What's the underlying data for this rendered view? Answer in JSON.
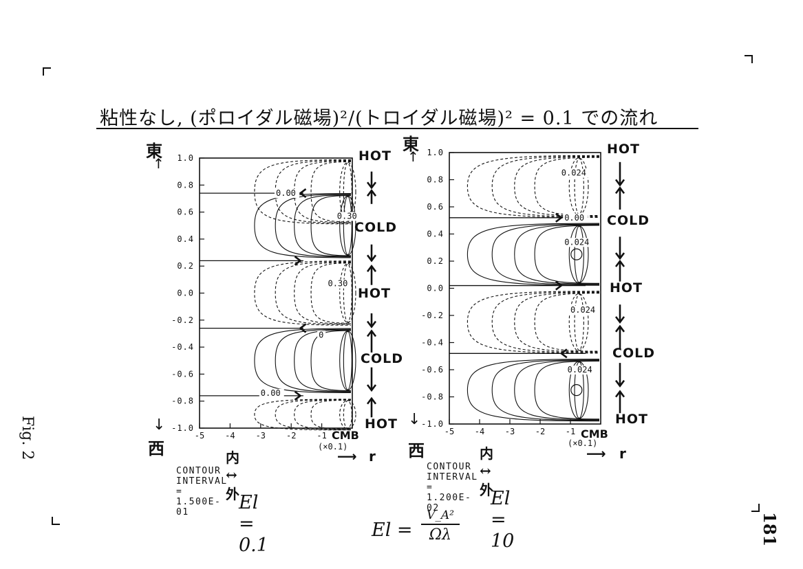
{
  "title": "粘性なし, (ポロイダル磁場)²/(トロイダル磁場)² = 0.1 での流れ",
  "figure_label": "Fig. 2",
  "page_number": "181",
  "labels": {
    "east": "東",
    "west": "西",
    "in_out": "内 ↔ 外",
    "cmb": "CMB",
    "scale": "(×0.1)",
    "r": "r"
  },
  "formula": {
    "lhs": "El =",
    "numerator": "V_A²",
    "denominator": "Ωλ"
  },
  "chart_data": [
    {
      "type": "contour",
      "x_ticks": [
        "-5",
        "-4",
        "-3",
        "-2",
        "-1"
      ],
      "y_ticks": [
        "1.0",
        "0.8",
        "0.6",
        "0.4",
        "0.2",
        "0.0",
        "-0.2",
        "-0.4",
        "-0.6",
        "-0.8",
        "-1.0"
      ],
      "xlim": [
        -5,
        0
      ],
      "ylim": [
        -1.0,
        1.0
      ],
      "contour_labels": [
        "0.00",
        "0.00",
        "0.30",
        "0.30",
        "0"
      ],
      "flow_labels": [
        "HOT",
        "COLD",
        "HOT",
        "COLD",
        "HOT"
      ],
      "contour_interval": "CONTOUR INTERVAL = 1.500E-01",
      "el_label": "El = 0.1"
    },
    {
      "type": "contour",
      "x_ticks": [
        "-5",
        "-4",
        "-3",
        "-2",
        "-1"
      ],
      "y_ticks": [
        "1.0",
        "0.8",
        "0.6",
        "0.4",
        "0.2",
        "0.0",
        "-0.2",
        "-0.4",
        "-0.6",
        "-0.8",
        "-1.0"
      ],
      "xlim": [
        -5,
        0
      ],
      "ylim": [
        -1.0,
        1.0
      ],
      "contour_labels": [
        "0.024",
        "0.00",
        "0.024",
        "0.024",
        "0.024"
      ],
      "flow_labels": [
        "HOT",
        "COLD",
        "HOT",
        "COLD",
        "HOT"
      ],
      "contour_interval": "CONTOUR INTERVAL = 1.200E-02",
      "el_label": "El = 10"
    }
  ]
}
